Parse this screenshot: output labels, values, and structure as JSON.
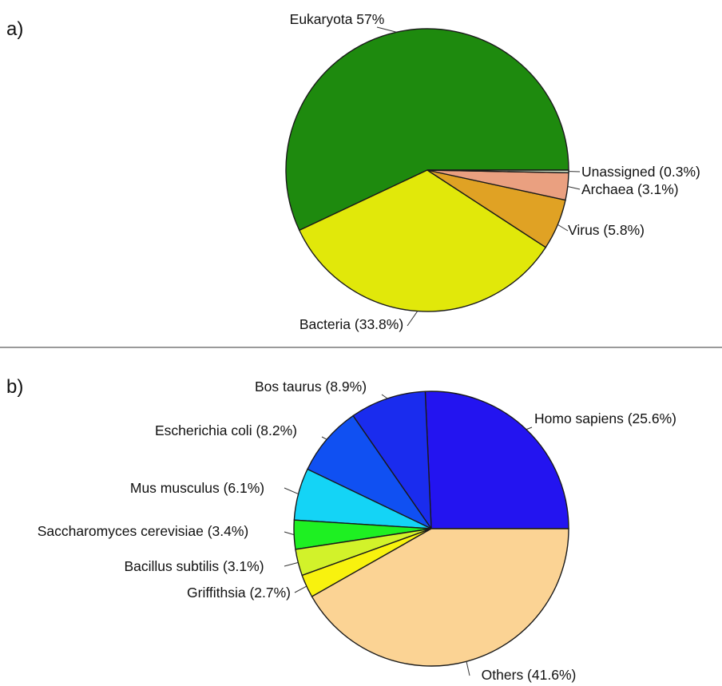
{
  "chart_data": [
    {
      "type": "pie",
      "panel_label": "a)",
      "slices": [
        {
          "name": "Eukaryota",
          "value": 57.0,
          "label": "Eukaryota 57%",
          "color": "#1e8a0e"
        },
        {
          "name": "Bacteria",
          "value": 33.8,
          "label": "Bacteria (33.8%)",
          "color": "#e1e80a"
        },
        {
          "name": "Virus",
          "value": 5.8,
          "label": "Virus (5.8%)",
          "color": "#e0a224"
        },
        {
          "name": "Archaea",
          "value": 3.1,
          "label": "Archaea (3.1%)",
          "color": "#eaa080"
        },
        {
          "name": "Unassigned",
          "value": 0.3,
          "label": "Unassigned (0.3%)",
          "color": "#cfe0c4"
        }
      ]
    },
    {
      "type": "pie",
      "panel_label": "b)",
      "slices": [
        {
          "name": "Homo sapiens",
          "value": 25.6,
          "label": "Homo sapiens (25.6%)",
          "color": "#2314f0"
        },
        {
          "name": "Bos taurus",
          "value": 8.9,
          "label": "Bos taurus (8.9%)",
          "color": "#1a2cee"
        },
        {
          "name": "Escherichia coli",
          "value": 8.2,
          "label": "Escherichia coli (8.2%)",
          "color": "#1050f2"
        },
        {
          "name": "Mus musculus",
          "value": 6.1,
          "label": "Mus musculus (6.1%)",
          "color": "#14d4f6"
        },
        {
          "name": "Saccharomyces cerevisiae",
          "value": 3.4,
          "label": "Saccharomyces cerevisiae (3.4%)",
          "color": "#1ef022"
        },
        {
          "name": "Bacillus subtilis",
          "value": 3.1,
          "label": "Bacillus subtilis (3.1%)",
          "color": "#d2f22a"
        },
        {
          "name": "Griffithsia",
          "value": 2.7,
          "label": "Griffithsia (2.7%)",
          "color": "#f8f20e"
        },
        {
          "name": "Others",
          "value": 41.6,
          "label": "Others (41.6%)",
          "color": "#fbd394"
        }
      ]
    }
  ]
}
